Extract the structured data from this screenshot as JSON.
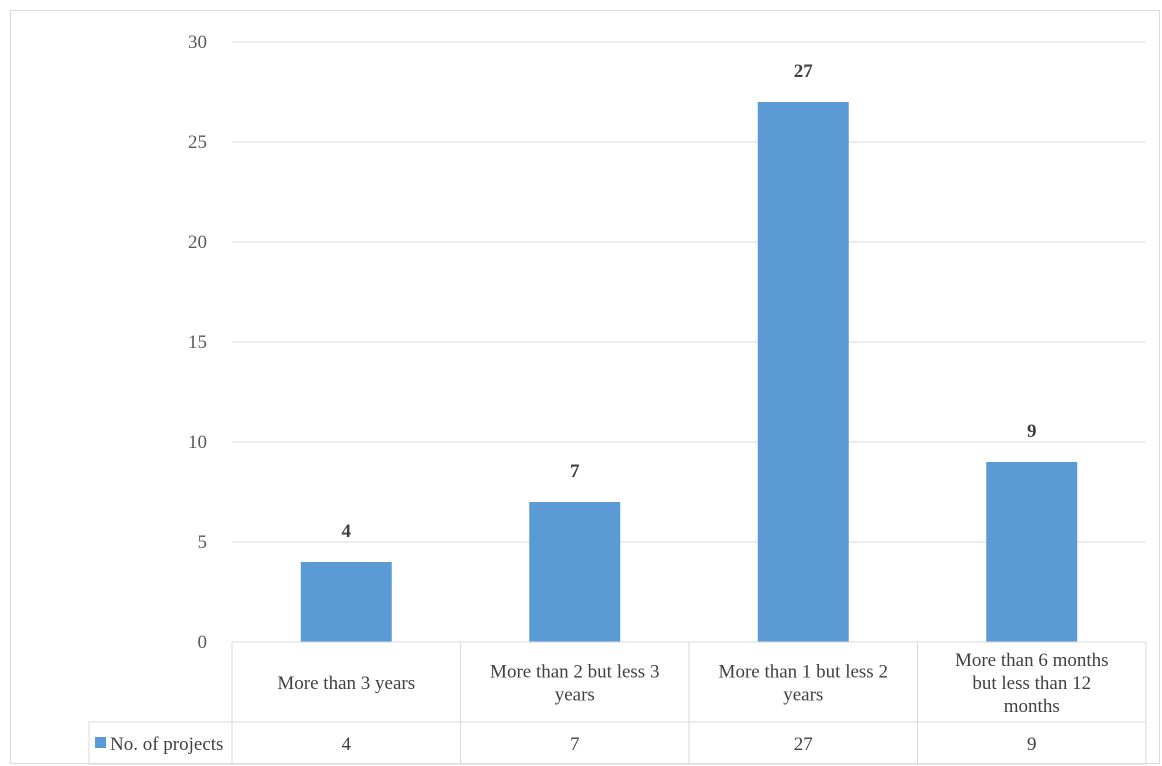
{
  "chart_data": {
    "type": "bar",
    "categories": [
      [
        "More than 3 years"
      ],
      [
        "More than 2 but less 3",
        "years"
      ],
      [
        "More than 1 but less 2",
        "years"
      ],
      [
        "More than 6 months",
        "but less than 12",
        "months"
      ]
    ],
    "series": [
      {
        "name": "No. of projects",
        "values": [
          4,
          7,
          27,
          9
        ],
        "color": "#5b9bd5"
      }
    ],
    "ylim": [
      0,
      30
    ],
    "yticks": [
      0,
      5,
      10,
      15,
      20,
      25,
      30
    ],
    "grid": true,
    "data_labels": true,
    "data_table": true,
    "title": "",
    "xlabel": "",
    "ylabel": ""
  }
}
